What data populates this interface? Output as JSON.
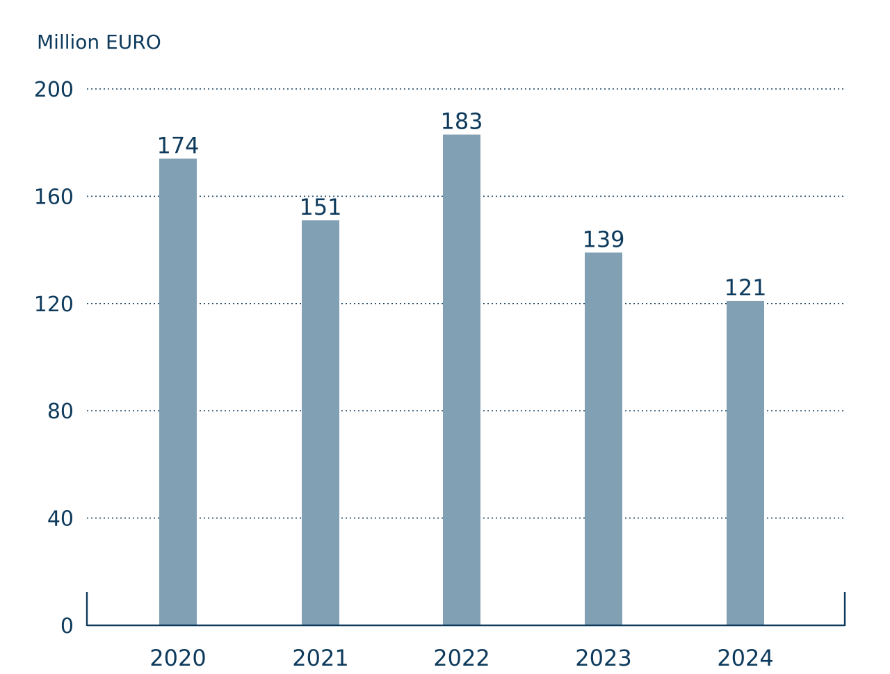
{
  "chart_data": {
    "type": "bar",
    "ylabel": "Million EURO",
    "categories": [
      "2020",
      "2021",
      "2022",
      "2023",
      "2024"
    ],
    "values": [
      174,
      151,
      183,
      139,
      121
    ],
    "data_labels": [
      "174",
      "151",
      "183",
      "139",
      "121"
    ],
    "ylim": [
      0,
      200
    ],
    "yticks": [
      0,
      40,
      80,
      120,
      160,
      200
    ],
    "ytick_labels": [
      "0",
      "40",
      "80",
      "120",
      "160",
      "200"
    ],
    "grid": "dotted horizontal",
    "legend": "none"
  },
  "colors": {
    "bar": "#82a0b4",
    "text": "#0d3a5c",
    "axis": "#0d3a5c",
    "grid": "#0d3a5c"
  }
}
